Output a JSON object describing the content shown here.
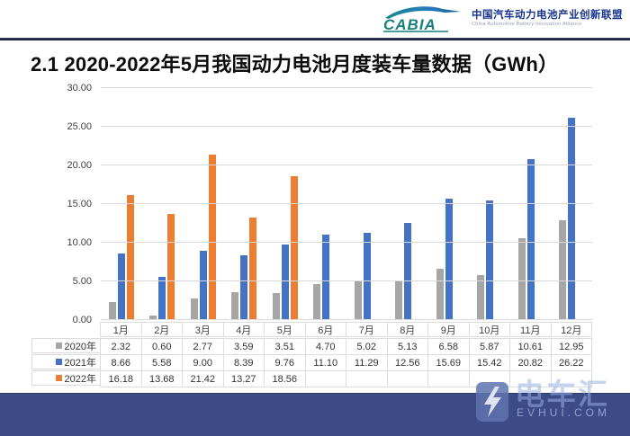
{
  "header": {
    "logo_text": "CABIA",
    "org_name_zh": "中国汽车动力电池产业创新联盟",
    "org_name_en": "China Automotive Battery Innovation Alliance"
  },
  "title": "2.1 2020-2022年5月我国动力电池月度装车量数据（GWh）",
  "chart_data": {
    "type": "bar",
    "title": "2.1 2020-2022年5月我国动力电池月度装车量数据（GWh）",
    "categories": [
      "1月",
      "2月",
      "3月",
      "4月",
      "5月",
      "6月",
      "7月",
      "8月",
      "9月",
      "10月",
      "11月",
      "12月"
    ],
    "series": [
      {
        "name": "2020年",
        "color": "#a6a6a6",
        "values": [
          2.32,
          0.6,
          2.77,
          3.59,
          3.51,
          4.7,
          5.02,
          5.13,
          6.58,
          5.87,
          10.61,
          12.95
        ]
      },
      {
        "name": "2021年",
        "color": "#4472c4",
        "values": [
          8.66,
          5.58,
          9.0,
          8.39,
          9.76,
          11.1,
          11.29,
          12.56,
          15.69,
          15.42,
          20.82,
          26.22
        ]
      },
      {
        "name": "2022年",
        "color": "#ed7d31",
        "values": [
          16.18,
          13.68,
          21.42,
          13.27,
          18.56,
          null,
          null,
          null,
          null,
          null,
          null,
          null
        ]
      }
    ],
    "xlabel": "",
    "ylabel": "",
    "ylim": [
      0,
      30
    ],
    "ytick_step": 5,
    "yticks": [
      "0.00",
      "5.00",
      "10.00",
      "15.00",
      "20.00",
      "25.00",
      "30.00"
    ],
    "grid": true,
    "legend_position": "data-table-left",
    "data_table": true
  },
  "watermark": {
    "name_zh": "电车汇",
    "domain": "EVHUI.COM"
  }
}
